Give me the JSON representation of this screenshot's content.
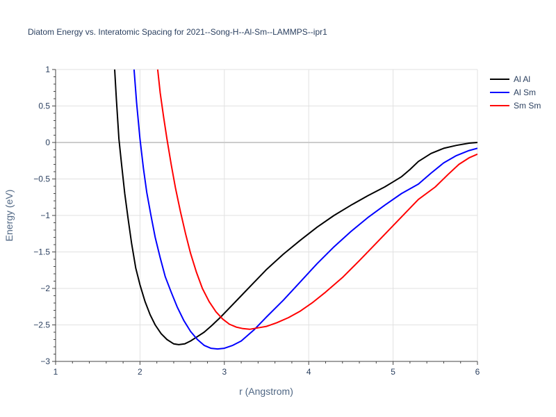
{
  "chart_data": {
    "type": "line",
    "title": "Diatom Energy vs. Interatomic Spacing for 2021--Song-H--Al-Sm--LAMMPS--ipr1",
    "xlabel": "r (Angstrom)",
    "ylabel": "Energy (eV)",
    "xlim": [
      1,
      6
    ],
    "ylim": [
      -3,
      1
    ],
    "xticks": [
      1,
      2,
      3,
      4,
      5,
      6
    ],
    "xtick_labels": [
      "1",
      "2",
      "3",
      "4",
      "5",
      "6"
    ],
    "yticks": [
      1,
      0.5,
      0,
      -0.5,
      -1,
      -1.5,
      -2,
      -2.5,
      -3
    ],
    "ytick_labels": [
      "1",
      "0.5",
      "0",
      "−0.5",
      "−1",
      "−1.5",
      "−2",
      "−2.5",
      "−3"
    ],
    "grid": true,
    "legend_position": "top-right outside",
    "series": [
      {
        "name": "Al Al",
        "color": "#000000",
        "x": [
          1.7,
          1.72,
          1.75,
          1.78,
          1.82,
          1.86,
          1.9,
          1.95,
          2.0,
          2.06,
          2.12,
          2.18,
          2.25,
          2.32,
          2.4,
          2.46,
          2.53,
          2.6,
          2.68,
          2.76,
          2.85,
          2.95,
          3.05,
          3.2,
          3.35,
          3.5,
          3.7,
          3.9,
          4.1,
          4.3,
          4.5,
          4.7,
          4.9,
          5.0,
          5.1,
          5.2,
          5.3,
          5.45,
          5.6,
          5.75,
          5.9,
          6.0
        ],
        "y": [
          1.0,
          0.6,
          0.05,
          -0.28,
          -0.7,
          -1.05,
          -1.38,
          -1.72,
          -1.95,
          -2.18,
          -2.36,
          -2.5,
          -2.62,
          -2.7,
          -2.76,
          -2.77,
          -2.76,
          -2.72,
          -2.66,
          -2.6,
          -2.51,
          -2.4,
          -2.28,
          -2.1,
          -1.92,
          -1.74,
          -1.53,
          -1.34,
          -1.16,
          -1.0,
          -0.86,
          -0.73,
          -0.61,
          -0.54,
          -0.47,
          -0.37,
          -0.26,
          -0.15,
          -0.08,
          -0.04,
          -0.01,
          0.0
        ]
      },
      {
        "name": "Al Sm",
        "color": "#0000ff",
        "x": [
          1.93,
          1.96,
          2.0,
          2.04,
          2.08,
          2.13,
          2.18,
          2.24,
          2.3,
          2.37,
          2.44,
          2.52,
          2.6,
          2.68,
          2.76,
          2.84,
          2.92,
          3.0,
          3.1,
          3.2,
          3.35,
          3.5,
          3.7,
          3.9,
          4.1,
          4.3,
          4.5,
          4.7,
          4.9,
          5.1,
          5.3,
          5.45,
          5.6,
          5.75,
          5.9,
          6.0
        ],
        "y": [
          1.0,
          0.55,
          0.05,
          -0.35,
          -0.68,
          -1.0,
          -1.3,
          -1.58,
          -1.84,
          -2.05,
          -2.25,
          -2.44,
          -2.59,
          -2.7,
          -2.78,
          -2.82,
          -2.83,
          -2.82,
          -2.78,
          -2.72,
          -2.57,
          -2.39,
          -2.16,
          -1.91,
          -1.66,
          -1.43,
          -1.22,
          -1.03,
          -0.86,
          -0.7,
          -0.57,
          -0.42,
          -0.28,
          -0.18,
          -0.11,
          -0.08
        ]
      },
      {
        "name": "Sm Sm",
        "color": "#ff0000",
        "x": [
          2.21,
          2.24,
          2.28,
          2.32,
          2.37,
          2.42,
          2.48,
          2.54,
          2.6,
          2.67,
          2.74,
          2.82,
          2.9,
          2.98,
          3.06,
          3.14,
          3.22,
          3.3,
          3.4,
          3.5,
          3.62,
          3.76,
          3.9,
          4.05,
          4.2,
          4.4,
          4.6,
          4.8,
          5.0,
          5.15,
          5.3,
          5.5,
          5.65,
          5.78,
          5.9,
          6.0
        ],
        "y": [
          1.0,
          0.68,
          0.35,
          0.05,
          -0.3,
          -0.62,
          -0.95,
          -1.25,
          -1.52,
          -1.78,
          -2.0,
          -2.18,
          -2.32,
          -2.42,
          -2.49,
          -2.53,
          -2.55,
          -2.56,
          -2.54,
          -2.52,
          -2.47,
          -2.4,
          -2.31,
          -2.19,
          -2.05,
          -1.85,
          -1.62,
          -1.38,
          -1.14,
          -0.96,
          -0.78,
          -0.61,
          -0.44,
          -0.3,
          -0.21,
          -0.16
        ]
      }
    ]
  }
}
